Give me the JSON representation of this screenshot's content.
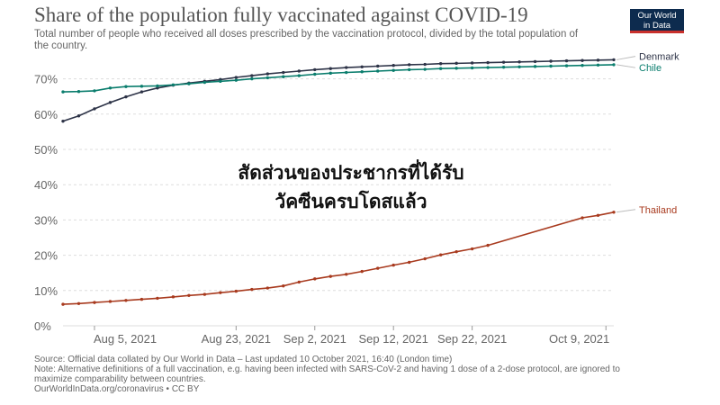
{
  "header": {
    "title": "Share of the population fully vaccinated against COVID-19",
    "subtitle": "Total number of people who received all doses prescribed by the vaccination protocol, divided by the total population of the country.",
    "logo_line1": "Our World",
    "logo_line2": "in Data"
  },
  "overlay": {
    "line1": "สัดส่วนของประชากรที่ได้รับ",
    "line2": "วัคซีนครบโดสแล้ว"
  },
  "footer": {
    "source": "Source: Official data collated by Our World in Data – Last updated 10 October 2021, 16:40 (London time)",
    "note": "Note: Alternative definitions of a full vaccination, e.g. having been infected with SARS-CoV-2 and having 1 dose of a 2-dose protocol, are ignored to maximize comparability between countries.",
    "credit": "OurWorldInData.org/coronavirus • CC BY"
  },
  "colors": {
    "denmark": "#2d3347",
    "chile": "#0a7d6d",
    "thailand": "#a83a1e",
    "grid": "#dddddd",
    "tick": "#666666"
  },
  "chart_data": {
    "type": "line",
    "title": "Share of the population fully vaccinated against COVID-19",
    "xlabel": "",
    "ylabel": "",
    "x_range": [
      "2021-08-01",
      "2021-10-10"
    ],
    "ylim": [
      0,
      75
    ],
    "y_ticks": [
      0,
      10,
      20,
      30,
      40,
      50,
      60,
      70
    ],
    "y_tick_labels": [
      "0%",
      "10%",
      "20%",
      "30%",
      "40%",
      "50%",
      "60%",
      "70%"
    ],
    "x_ticks": [
      "2021-08-05",
      "2021-08-23",
      "2021-09-02",
      "2021-09-12",
      "2021-09-22",
      "2021-10-09"
    ],
    "x_tick_labels": [
      "Aug 5, 2021",
      "Aug 23, 2021",
      "Sep 2, 2021",
      "Sep 12, 2021",
      "Sep 22, 2021",
      "Oct 9, 2021"
    ],
    "grid": true,
    "legend": "end-of-line labels at right",
    "series": [
      {
        "name": "Denmark",
        "color": "#2d3347",
        "points": [
          [
            "2021-08-01",
            58.0
          ],
          [
            "2021-08-03",
            59.5
          ],
          [
            "2021-08-05",
            61.5
          ],
          [
            "2021-08-07",
            63.3
          ],
          [
            "2021-08-09",
            64.9
          ],
          [
            "2021-08-11",
            66.3
          ],
          [
            "2021-08-13",
            67.4
          ],
          [
            "2021-08-15",
            68.2
          ],
          [
            "2021-08-17",
            68.8
          ],
          [
            "2021-08-19",
            69.3
          ],
          [
            "2021-08-21",
            69.8
          ],
          [
            "2021-08-23",
            70.4
          ],
          [
            "2021-08-25",
            70.9
          ],
          [
            "2021-08-27",
            71.4
          ],
          [
            "2021-08-29",
            71.8
          ],
          [
            "2021-08-31",
            72.2
          ],
          [
            "2021-09-02",
            72.6
          ],
          [
            "2021-09-04",
            72.9
          ],
          [
            "2021-09-06",
            73.2
          ],
          [
            "2021-09-08",
            73.4
          ],
          [
            "2021-09-10",
            73.6
          ],
          [
            "2021-09-12",
            73.8
          ],
          [
            "2021-09-14",
            74.0
          ],
          [
            "2021-09-16",
            74.1
          ],
          [
            "2021-09-18",
            74.3
          ],
          [
            "2021-09-20",
            74.4
          ],
          [
            "2021-09-22",
            74.5
          ],
          [
            "2021-09-24",
            74.6
          ],
          [
            "2021-09-26",
            74.7
          ],
          [
            "2021-09-28",
            74.8
          ],
          [
            "2021-09-30",
            74.9
          ],
          [
            "2021-10-02",
            75.0
          ],
          [
            "2021-10-04",
            75.1
          ],
          [
            "2021-10-06",
            75.2
          ],
          [
            "2021-10-08",
            75.3
          ],
          [
            "2021-10-10",
            75.4
          ]
        ]
      },
      {
        "name": "Chile",
        "color": "#0a7d6d",
        "points": [
          [
            "2021-08-01",
            66.3
          ],
          [
            "2021-08-03",
            66.4
          ],
          [
            "2021-08-05",
            66.6
          ],
          [
            "2021-08-07",
            67.4
          ],
          [
            "2021-08-09",
            67.8
          ],
          [
            "2021-08-11",
            67.9
          ],
          [
            "2021-08-13",
            68.0
          ],
          [
            "2021-08-15",
            68.3
          ],
          [
            "2021-08-17",
            68.6
          ],
          [
            "2021-08-19",
            69.0
          ],
          [
            "2021-08-21",
            69.3
          ],
          [
            "2021-08-23",
            69.6
          ],
          [
            "2021-08-25",
            70.0
          ],
          [
            "2021-08-27",
            70.3
          ],
          [
            "2021-08-29",
            70.6
          ],
          [
            "2021-08-31",
            70.9
          ],
          [
            "2021-09-02",
            71.3
          ],
          [
            "2021-09-04",
            71.6
          ],
          [
            "2021-09-06",
            71.8
          ],
          [
            "2021-09-08",
            72.0
          ],
          [
            "2021-09-10",
            72.2
          ],
          [
            "2021-09-12",
            72.4
          ],
          [
            "2021-09-14",
            72.6
          ],
          [
            "2021-09-16",
            72.7
          ],
          [
            "2021-09-18",
            72.9
          ],
          [
            "2021-09-20",
            73.0
          ],
          [
            "2021-09-22",
            73.1
          ],
          [
            "2021-09-24",
            73.2
          ],
          [
            "2021-09-26",
            73.3
          ],
          [
            "2021-09-28",
            73.4
          ],
          [
            "2021-09-30",
            73.5
          ],
          [
            "2021-10-02",
            73.6
          ],
          [
            "2021-10-04",
            73.7
          ],
          [
            "2021-10-06",
            73.8
          ],
          [
            "2021-10-08",
            73.9
          ],
          [
            "2021-10-10",
            74.0
          ]
        ]
      },
      {
        "name": "Thailand",
        "color": "#a83a1e",
        "points": [
          [
            "2021-08-01",
            6.1
          ],
          [
            "2021-08-03",
            6.3
          ],
          [
            "2021-08-05",
            6.6
          ],
          [
            "2021-08-07",
            6.9
          ],
          [
            "2021-08-09",
            7.2
          ],
          [
            "2021-08-11",
            7.5
          ],
          [
            "2021-08-13",
            7.8
          ],
          [
            "2021-08-15",
            8.2
          ],
          [
            "2021-08-17",
            8.6
          ],
          [
            "2021-08-19",
            8.9
          ],
          [
            "2021-08-21",
            9.4
          ],
          [
            "2021-08-23",
            9.8
          ],
          [
            "2021-08-25",
            10.3
          ],
          [
            "2021-08-27",
            10.7
          ],
          [
            "2021-08-29",
            11.3
          ],
          [
            "2021-08-31",
            12.4
          ],
          [
            "2021-09-02",
            13.3
          ],
          [
            "2021-09-04",
            14.0
          ],
          [
            "2021-09-06",
            14.6
          ],
          [
            "2021-09-08",
            15.4
          ],
          [
            "2021-09-10",
            16.3
          ],
          [
            "2021-09-12",
            17.2
          ],
          [
            "2021-09-14",
            18.0
          ],
          [
            "2021-09-16",
            19.0
          ],
          [
            "2021-09-18",
            20.1
          ],
          [
            "2021-09-20",
            21.0
          ],
          [
            "2021-09-22",
            21.8
          ],
          [
            "2021-09-24",
            22.8
          ],
          [
            "2021-10-06",
            30.6
          ],
          [
            "2021-10-08",
            31.3
          ],
          [
            "2021-10-10",
            32.2
          ]
        ]
      }
    ]
  }
}
